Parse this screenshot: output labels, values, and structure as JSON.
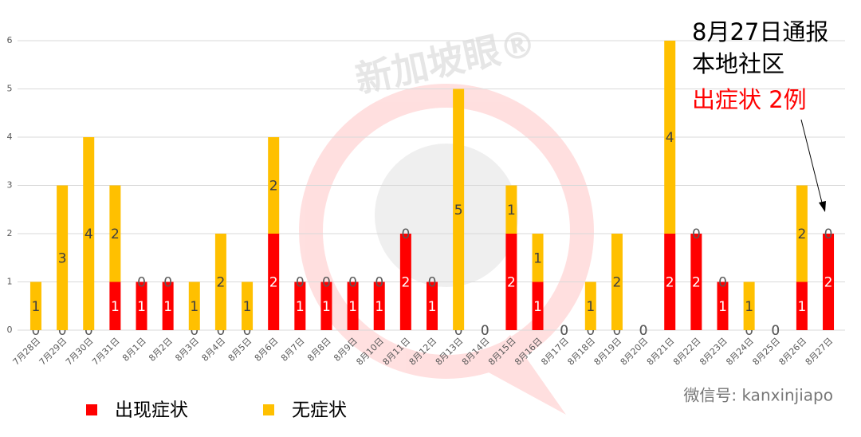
{
  "chart_data": {
    "type": "bar",
    "stacked": true,
    "categories": [
      "7月28日",
      "7月29日",
      "7月30日",
      "7月31日",
      "8月1日",
      "8月2日",
      "8月3日",
      "8月4日",
      "8月5日",
      "8月6日",
      "8月7日",
      "8月8日",
      "8月9日",
      "8月10日",
      "8月11日",
      "8月12日",
      "8月13日",
      "8月14日",
      "8月15日",
      "8月16日",
      "8月17日",
      "8月18日",
      "8月19日",
      "8月20日",
      "8月21日",
      "8月22日",
      "8月23日",
      "8月24日",
      "8月25日",
      "8月26日",
      "8月27日"
    ],
    "series": [
      {
        "name": "出现症状",
        "color": "#ff0000",
        "values": [
          0,
          0,
          0,
          1,
          1,
          1,
          0,
          0,
          0,
          2,
          1,
          1,
          1,
          1,
          2,
          1,
          0,
          0,
          2,
          1,
          0,
          0,
          0,
          0,
          2,
          2,
          1,
          0,
          0,
          1,
          2
        ]
      },
      {
        "name": "无症状",
        "color": "#ffc000",
        "values": [
          1,
          3,
          4,
          2,
          0,
          0,
          1,
          2,
          1,
          2,
          0,
          0,
          0,
          0,
          0,
          0,
          5,
          0,
          1,
          1,
          0,
          1,
          2,
          0,
          4,
          0,
          0,
          1,
          0,
          2,
          0
        ]
      }
    ],
    "ylim": [
      0,
      6
    ],
    "yticks": [
      0,
      1,
      2,
      3,
      4,
      5,
      6
    ],
    "grid": true,
    "legend": "bottom-left",
    "annotation": [
      "8月27日通报",
      "本地社区",
      "出症状 2例"
    ],
    "watermark": "新加坡眼®",
    "footer": "微信号: kanxinjiapo"
  }
}
